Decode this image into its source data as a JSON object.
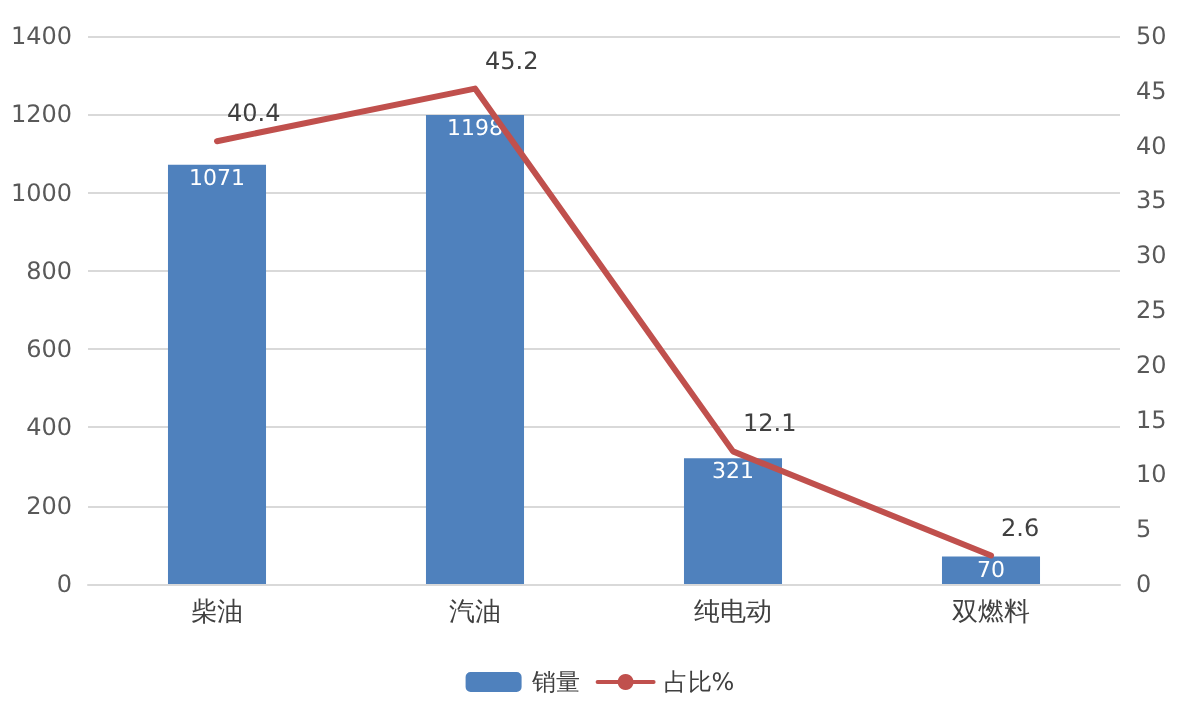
{
  "chart_data": {
    "type": "bar",
    "categories": [
      "柴油",
      "汽油",
      "纯电动",
      "双燃料"
    ],
    "series": [
      {
        "name": "销量",
        "color": "#4f81bd",
        "values": [
          1071,
          1198,
          321,
          70
        ]
      },
      {
        "name": "占比%",
        "type": "line",
        "axis": "y2",
        "color": "#c0504d",
        "values": [
          40.4,
          45.2,
          12.1,
          2.6
        ]
      }
    ],
    "ylim": [
      0,
      1400
    ],
    "yticks": [
      0,
      200,
      400,
      600,
      800,
      1000,
      1200,
      1400
    ],
    "y2lim": [
      0,
      50
    ],
    "y2ticks": [
      0,
      5,
      10,
      15,
      20,
      25,
      30,
      35,
      40,
      45,
      50
    ],
    "grid": "y",
    "legend": "bottom",
    "data_labels": true,
    "marker": "none",
    "line_style": "solid"
  }
}
